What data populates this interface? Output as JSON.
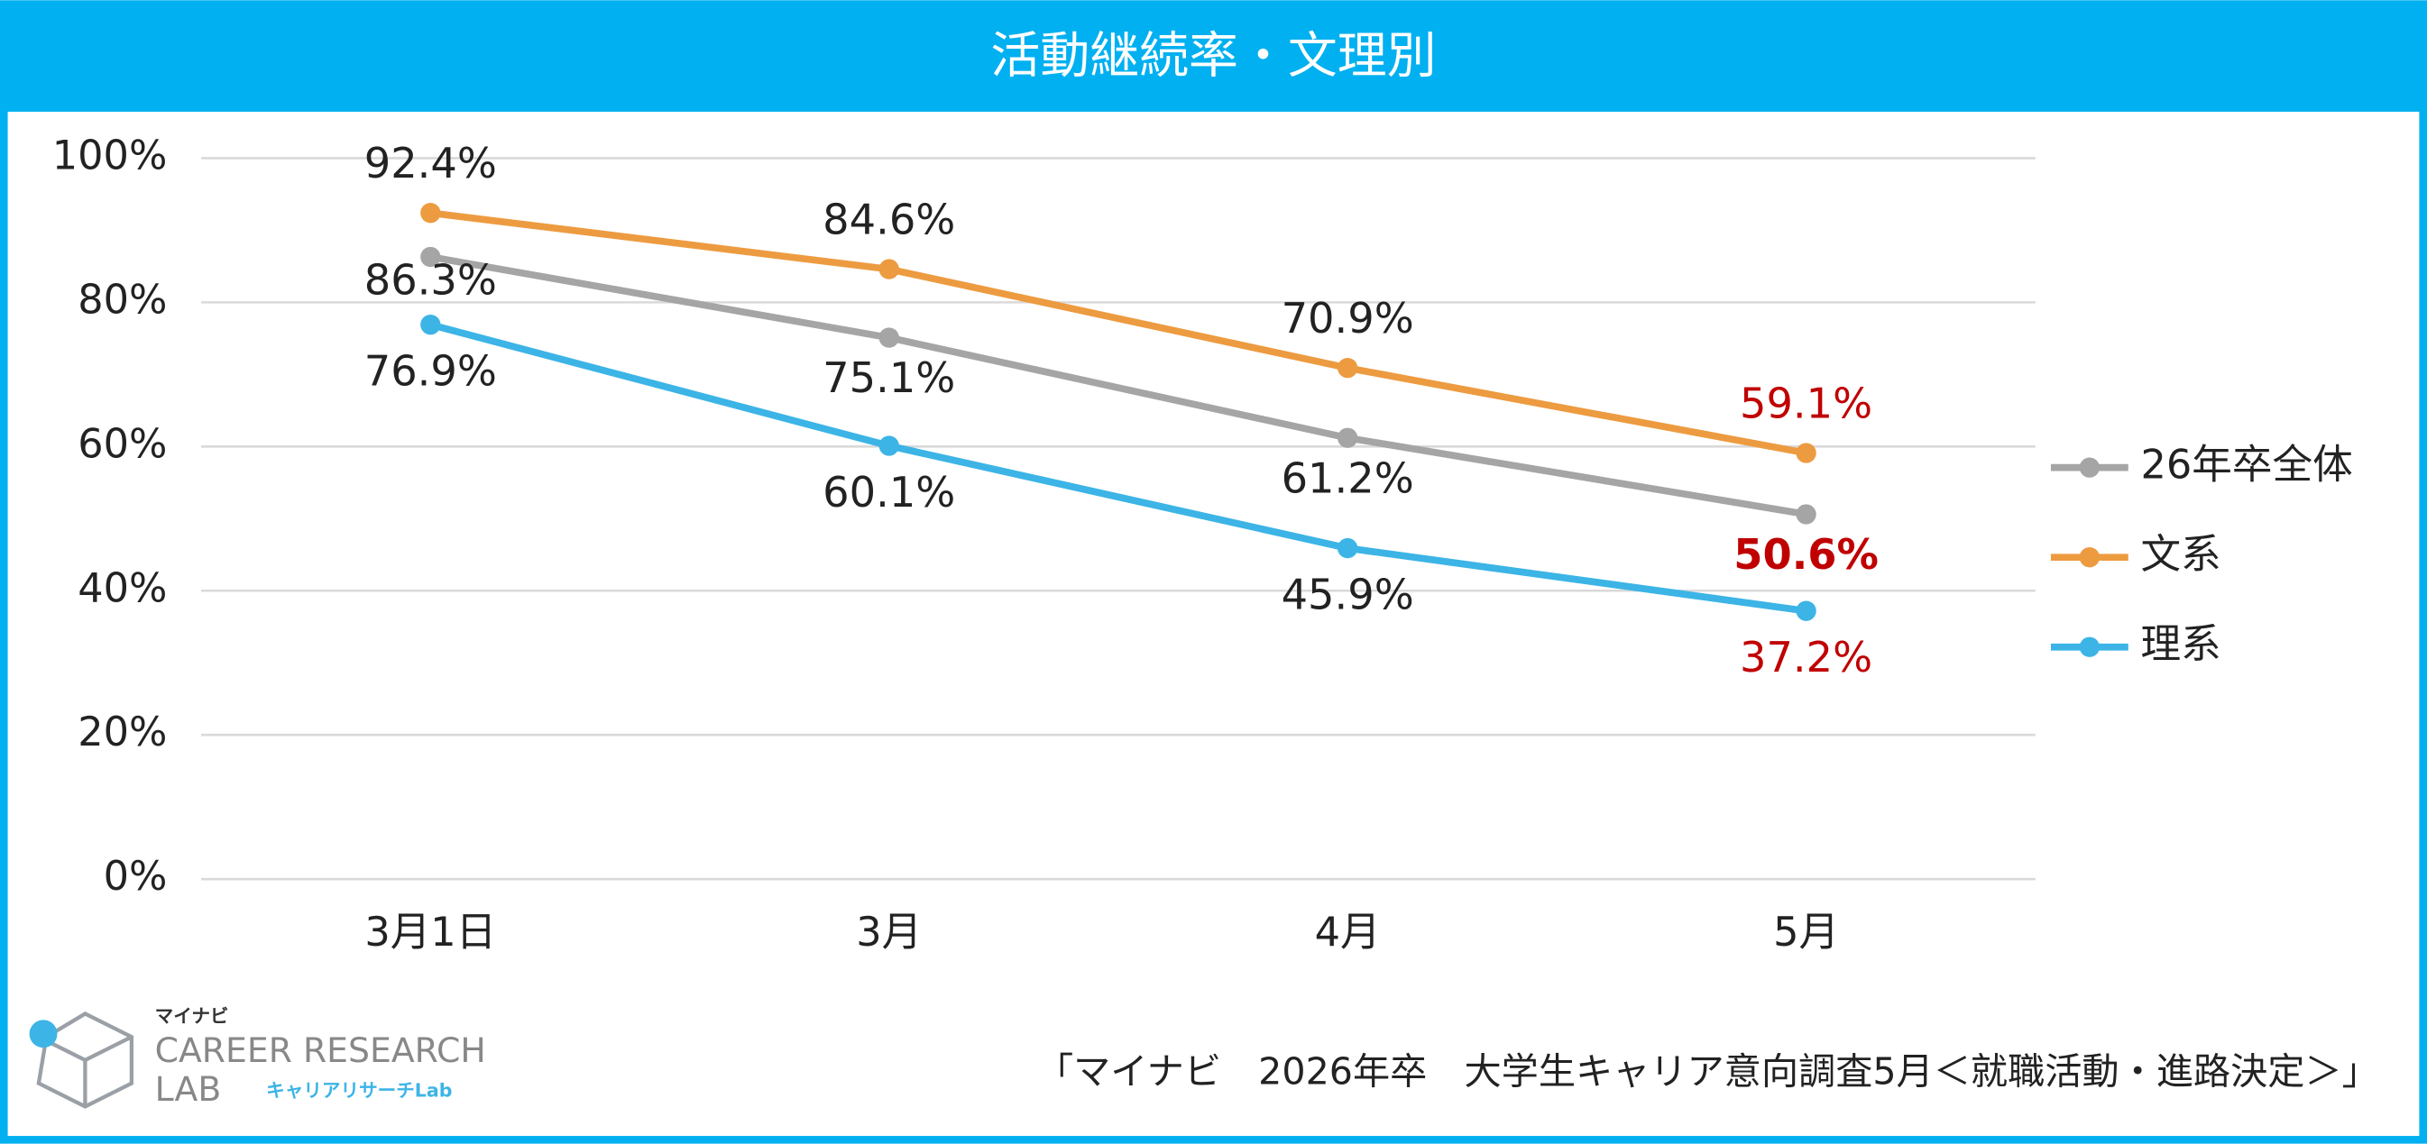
{
  "chart_data": {
    "type": "line",
    "title": "活動継続率・文理別",
    "categories": [
      "3月1日",
      "3月",
      "4月",
      "5月"
    ],
    "series": [
      {
        "name": "26年卒全体",
        "color": "#a5a5a5",
        "values": [
          86.3,
          75.1,
          61.2,
          50.6
        ],
        "value_labels": [
          "86.3%",
          "75.1%",
          "61.2%",
          "50.6%"
        ],
        "value_label_colors": [
          "#222222",
          "#222222",
          "#222222",
          "#c00000"
        ],
        "value_label_weights": [
          "normal",
          "normal",
          "normal",
          "bold"
        ]
      },
      {
        "name": "文系",
        "color": "#ed9b40",
        "values": [
          92.4,
          84.6,
          70.9,
          59.1
        ],
        "value_labels": [
          "92.4%",
          "84.6%",
          "70.9%",
          "59.1%"
        ],
        "value_label_colors": [
          "#222222",
          "#222222",
          "#222222",
          "#c00000"
        ],
        "value_label_weights": [
          "normal",
          "normal",
          "normal",
          "normal"
        ]
      },
      {
        "name": "理系",
        "color": "#3cb4e6",
        "values": [
          76.9,
          60.1,
          45.9,
          37.2
        ],
        "value_labels": [
          "76.9%",
          "60.1%",
          "45.9%",
          "37.2%"
        ],
        "value_label_colors": [
          "#222222",
          "#222222",
          "#222222",
          "#c00000"
        ],
        "value_label_weights": [
          "normal",
          "normal",
          "normal",
          "normal"
        ]
      }
    ],
    "ylim": [
      0,
      100
    ],
    "yticks": [
      {
        "value": 0,
        "label": "0%"
      },
      {
        "value": 20,
        "label": "20%"
      },
      {
        "value": 40,
        "label": "40%"
      },
      {
        "value": 60,
        "label": "60%"
      },
      {
        "value": 80,
        "label": "80%"
      },
      {
        "value": 100,
        "label": "100%"
      }
    ],
    "grid": true,
    "legend": "right",
    "frame_color": "#00b0f0"
  },
  "source": "「マイナビ　2026年卒　大学生キャリア意向調査5月＜就職活動・進路決定＞」",
  "logo": {
    "brand": "マイナビ",
    "name": "CAREER RESEARCH",
    "name2": "LAB",
    "sub": "キャリアリサーチLab"
  }
}
